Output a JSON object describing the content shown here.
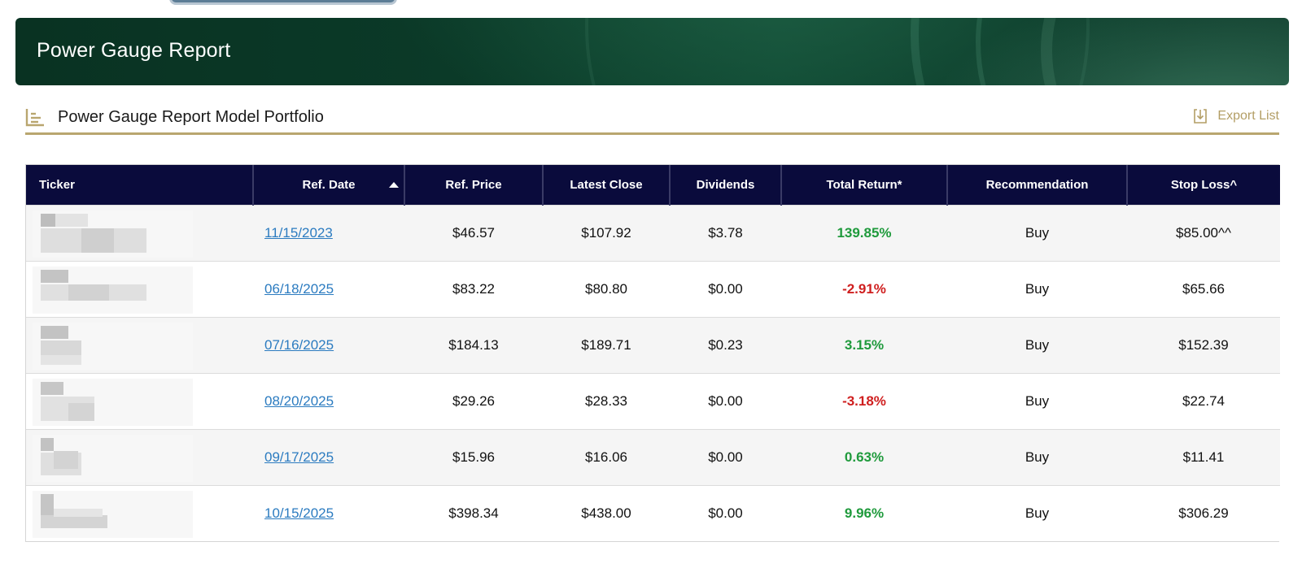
{
  "header": {
    "title": "Power Gauge Report"
  },
  "section": {
    "title": "Power Gauge Report Model Portfolio",
    "export_label": "Export List",
    "icon": "chart-list-icon",
    "accent_color": "#b9a66f"
  },
  "table": {
    "columns": {
      "ticker": "Ticker",
      "ref_date": "Ref. Date",
      "ref_price": "Ref. Price",
      "latest_close": "Latest Close",
      "dividends": "Dividends",
      "total_return": "Total Return*",
      "recommendation": "Recommendation",
      "stop_loss": "Stop Loss^"
    },
    "sort": {
      "column": "ref_date",
      "direction": "ascending"
    },
    "rows": [
      {
        "ref_date": "11/15/2023",
        "ref_price": "$46.57",
        "latest_close": "$107.92",
        "dividends": "$3.78",
        "total_return": "139.85%",
        "return_positive": true,
        "recommendation": "Buy",
        "stop_loss": "$85.00^^"
      },
      {
        "ref_date": "06/18/2025",
        "ref_price": "$83.22",
        "latest_close": "$80.80",
        "dividends": "$0.00",
        "total_return": "-2.91%",
        "return_positive": false,
        "recommendation": "Buy",
        "stop_loss": "$65.66"
      },
      {
        "ref_date": "07/16/2025",
        "ref_price": "$184.13",
        "latest_close": "$189.71",
        "dividends": "$0.23",
        "total_return": "3.15%",
        "return_positive": true,
        "recommendation": "Buy",
        "stop_loss": "$152.39"
      },
      {
        "ref_date": "08/20/2025",
        "ref_price": "$29.26",
        "latest_close": "$28.33",
        "dividends": "$0.00",
        "total_return": "-3.18%",
        "return_positive": false,
        "recommendation": "Buy",
        "stop_loss": "$22.74"
      },
      {
        "ref_date": "09/17/2025",
        "ref_price": "$15.96",
        "latest_close": "$16.06",
        "dividends": "$0.00",
        "total_return": "0.63%",
        "return_positive": true,
        "recommendation": "Buy",
        "stop_loss": "$11.41"
      },
      {
        "ref_date": "10/15/2025",
        "ref_price": "$398.34",
        "latest_close": "$438.00",
        "dividends": "$0.00",
        "total_return": "9.96%",
        "return_positive": true,
        "recommendation": "Buy",
        "stop_loss": "$306.29"
      }
    ]
  },
  "colors": {
    "header_bg": "#0a0b3c",
    "positive": "#1f9a3c",
    "negative": "#cf1f1f",
    "link": "#2b7bc0"
  }
}
